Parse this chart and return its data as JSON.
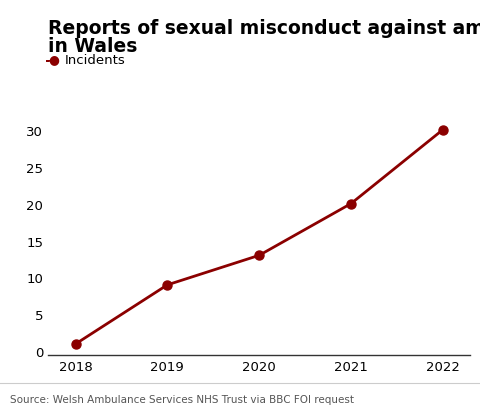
{
  "title_line1": "Reports of sexual misconduct against ambulance staff",
  "title_line2": "in Wales",
  "years": [
    2018,
    2019,
    2020,
    2021,
    2022
  ],
  "values": [
    1,
    9,
    13,
    20,
    30
  ],
  "line_color": "#8B0000",
  "marker_color": "#8B0000",
  "legend_label": "Incidents",
  "ylabel_ticks": [
    0,
    5,
    10,
    15,
    20,
    25,
    30
  ],
  "ylim": [
    -0.5,
    32
  ],
  "xlim": [
    2017.7,
    2022.3
  ],
  "source_text": "Source: Welsh Ambulance Services NHS Trust via BBC FOI request",
  "background_color": "#ffffff",
  "title_fontsize": 13.5,
  "tick_fontsize": 9.5,
  "legend_fontsize": 9.5,
  "source_fontsize": 7.5
}
